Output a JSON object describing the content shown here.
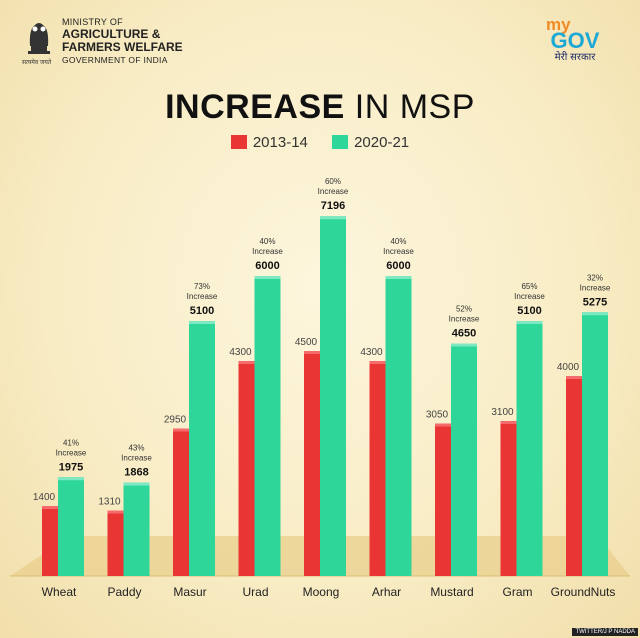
{
  "header": {
    "ministry_line1": "MINISTRY OF",
    "ministry_line2": "AGRICULTURE &",
    "ministry_line3": "FARMERS WELFARE",
    "ministry_line4": "GOVERNMENT OF INDIA",
    "emblem_caption": "सत्यमेव जयते",
    "mygov_my": "my",
    "mygov_gov": "GOV",
    "mygov_sarkar": "मेरी सरकार"
  },
  "credit": "TWITTER/J P NADDA",
  "colors": {
    "red": "#ea3535",
    "green": "#2ed69a",
    "floor": "#e9cf8c"
  },
  "chart_data": {
    "type": "bar",
    "title_bold": "INCREASE",
    "title_rest": "IN MSP",
    "categories": [
      "Wheat",
      "Paddy",
      "Masur",
      "Urad",
      "Moong",
      "Arhar",
      "Mustard",
      "Gram",
      "GroundNuts"
    ],
    "series": [
      {
        "name": "2013-14",
        "values": [
          1400,
          1310,
          2950,
          4300,
          4500,
          4300,
          3050,
          3100,
          4000
        ]
      },
      {
        "name": "2020-21",
        "values": [
          1975,
          1868,
          5100,
          6000,
          7196,
          6000,
          4650,
          5100,
          5275
        ]
      }
    ],
    "increase_percent": [
      "41%",
      "43%",
      "73%",
      "40%",
      "60%",
      "40%",
      "52%",
      "65%",
      "32%"
    ],
    "increase_word": "Increase",
    "ylim": [
      0,
      8000
    ],
    "grid": false,
    "legend_position": "top-center"
  }
}
